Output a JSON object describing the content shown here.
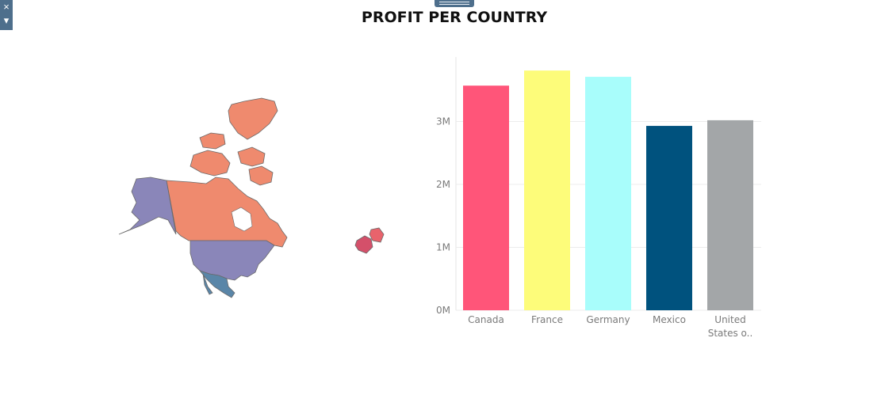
{
  "toolbar": {
    "close_icon": "×",
    "dropdown_icon": "▾"
  },
  "dashboard": {
    "title": "PROFIT PER COUNTRY"
  },
  "colors": {
    "Canada": "#ff5579",
    "France": "#fdfc7a",
    "Germany": "#a8fdfb",
    "Mexico": "#00527e",
    "United States o..": "#a3a6a8",
    "map_canada": "#ef8a6e",
    "map_us": "#8a86b9",
    "map_mexico": "#5a86a8",
    "map_france": "#d4506a",
    "map_germany": "#e8636c"
  },
  "chart_data": {
    "type": "bar",
    "categories": [
      "Canada",
      "France",
      "Germany",
      "Mexico",
      "United States o.."
    ],
    "values": [
      3.57,
      3.81,
      3.71,
      2.93,
      3.02
    ],
    "unit": "M",
    "yticks": [
      "0M",
      "1M",
      "2M",
      "3M"
    ],
    "ylim": [
      0,
      4
    ],
    "grid": true
  }
}
